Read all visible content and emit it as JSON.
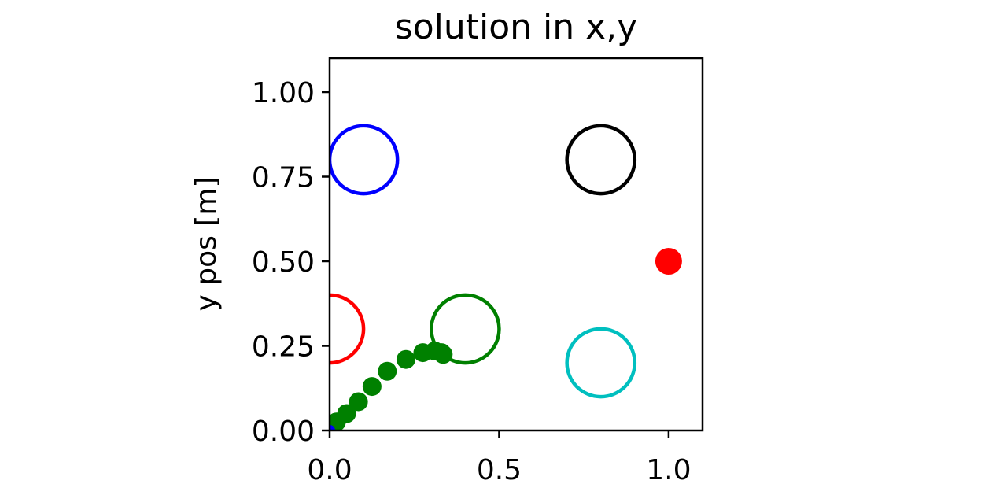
{
  "chart_data": {
    "type": "scatter",
    "title": "solution in x,y",
    "xlabel": "",
    "ylabel": "y pos [m]",
    "xlim": [
      0.0,
      1.1
    ],
    "ylim": [
      0.0,
      1.1
    ],
    "grid": false,
    "x_ticks": [
      "0.0",
      "0.5",
      "1.0"
    ],
    "x_tick_values": [
      0.0,
      0.5,
      1.0
    ],
    "y_ticks": [
      "0.00",
      "0.25",
      "0.50",
      "0.75",
      "1.00"
    ],
    "y_tick_values": [
      0.0,
      0.25,
      0.5,
      0.75,
      1.0
    ],
    "obstacles": [
      {
        "x": 0.1,
        "y": 0.8,
        "r": 0.1,
        "color": "#0000ff"
      },
      {
        "x": 0.8,
        "y": 0.8,
        "r": 0.1,
        "color": "#000000"
      },
      {
        "x": 0.0,
        "y": 0.3,
        "r": 0.1,
        "color": "#ff0000"
      },
      {
        "x": 0.4,
        "y": 0.3,
        "r": 0.1,
        "color": "#008000"
      },
      {
        "x": 0.8,
        "y": 0.2,
        "r": 0.1,
        "color": "#00bfbf"
      }
    ],
    "goal": {
      "x": 1.0,
      "y": 0.5,
      "color": "#ff0000"
    },
    "start": {
      "x": 0.0,
      "y": 0.0,
      "color": "#0000ff"
    },
    "trajectory": {
      "color": "#008000",
      "x": [
        0.0,
        0.02,
        0.05,
        0.085,
        0.125,
        0.17,
        0.225,
        0.275,
        0.31,
        0.33,
        0.335
      ],
      "y": [
        0.0,
        0.025,
        0.05,
        0.085,
        0.13,
        0.175,
        0.21,
        0.23,
        0.235,
        0.23,
        0.225
      ]
    }
  }
}
